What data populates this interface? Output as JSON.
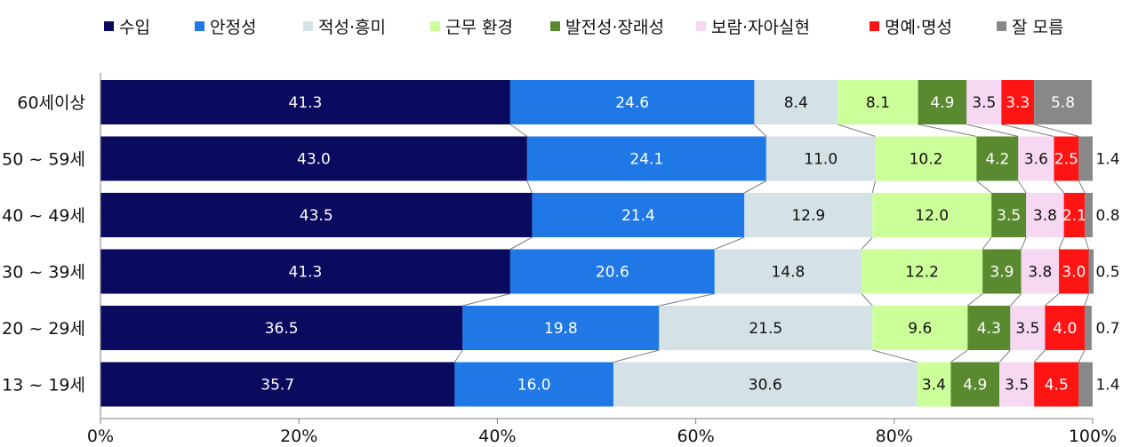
{
  "chart_data": {
    "type": "bar",
    "orientation": "horizontal",
    "stacked": "percent",
    "title": "",
    "xlabel": "",
    "ylabel": "",
    "xlim": [
      0,
      100
    ],
    "x_ticks": [
      "0%",
      "20%",
      "40%",
      "60%",
      "80%",
      "100%"
    ],
    "legend_position": "top",
    "grid": false,
    "categories": [
      "60세이상",
      "50 ~ 59세",
      "40 ~ 49세",
      "30 ~ 39세",
      "20 ~ 29세",
      "13 ~ 19세"
    ],
    "series": [
      {
        "name": "수입",
        "color": "#0a0a5e",
        "label_color": "#ffffff",
        "values": [
          41.3,
          43.0,
          43.5,
          41.3,
          36.5,
          35.7
        ]
      },
      {
        "name": "안정성",
        "color": "#1f78e6",
        "label_color": "#ffffff",
        "values": [
          24.6,
          24.1,
          21.4,
          20.6,
          19.8,
          16.0
        ]
      },
      {
        "name": "적성·흥미",
        "color": "#d4e1e6",
        "label_color": "#111111",
        "values": [
          8.4,
          11.0,
          12.9,
          14.8,
          21.5,
          30.6
        ]
      },
      {
        "name": "근무 환경",
        "color": "#ccff99",
        "label_color": "#111111",
        "values": [
          8.1,
          10.2,
          12.0,
          12.2,
          9.6,
          3.4
        ]
      },
      {
        "name": "발전성·장래성",
        "color": "#5a8a30",
        "label_color": "#ffffff",
        "values": [
          4.9,
          4.2,
          3.5,
          3.9,
          4.3,
          4.9
        ]
      },
      {
        "name": "보람·자아실현",
        "color": "#f6d8f3",
        "label_color": "#111111",
        "values": [
          3.5,
          3.6,
          3.8,
          3.8,
          3.5,
          3.5
        ]
      },
      {
        "name": "명예·명성",
        "color": "#ff1414",
        "label_color": "#ffffff",
        "values": [
          3.3,
          2.5,
          2.1,
          3.0,
          4.0,
          4.5
        ]
      },
      {
        "name": "잘 모름",
        "color": "#888888",
        "label_color": "#ffffff",
        "values": [
          5.8,
          1.4,
          0.8,
          0.5,
          0.7,
          1.4
        ]
      }
    ]
  }
}
